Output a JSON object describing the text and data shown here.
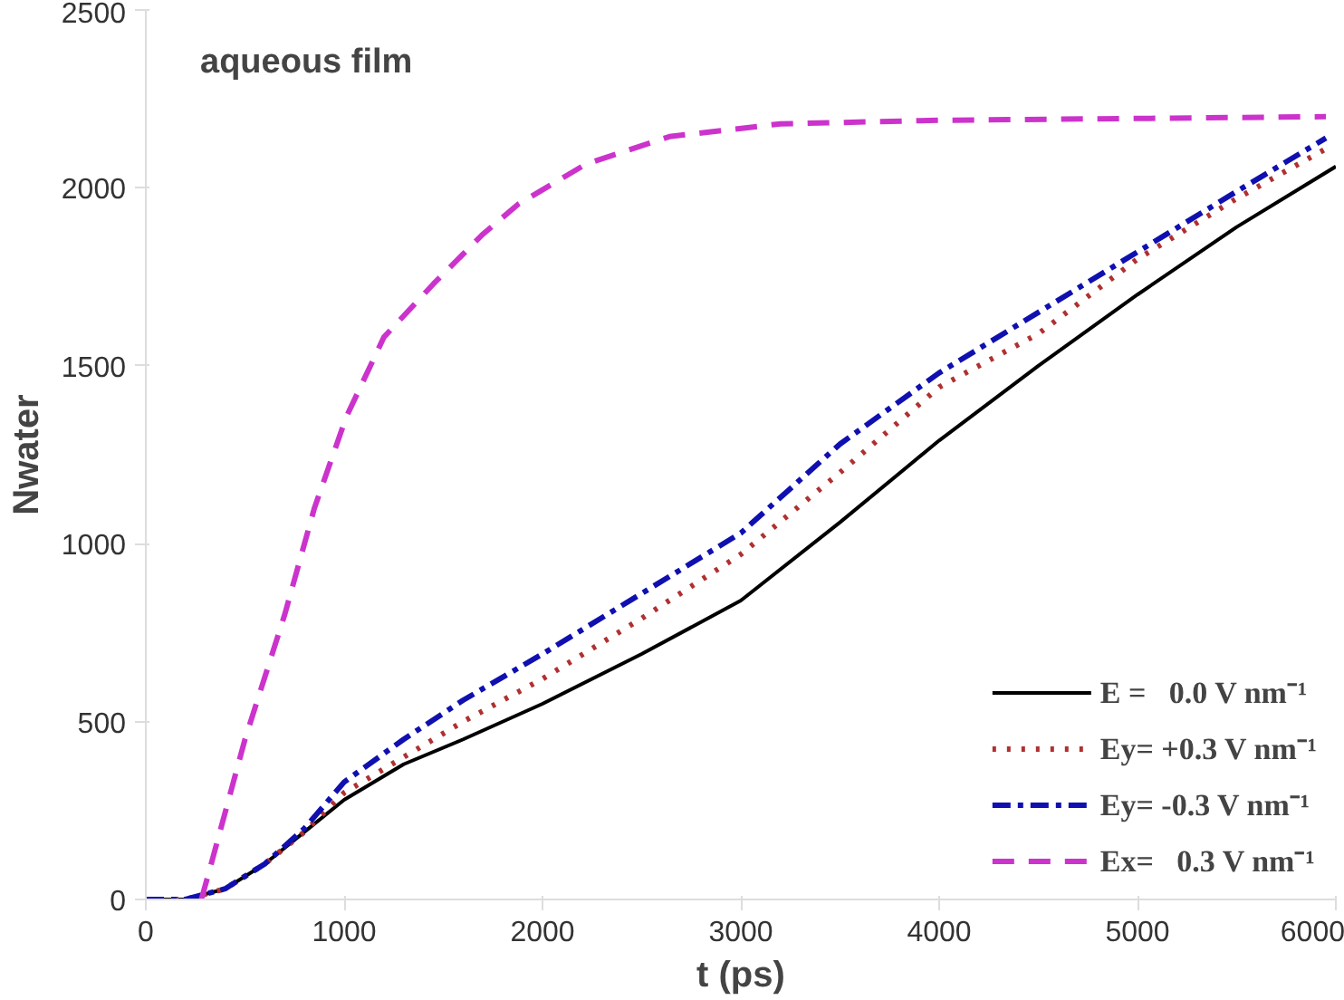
{
  "chart_data": {
    "type": "line",
    "xlabel": "t (ps)",
    "ylabel": "Nwater",
    "annotations": [
      "aqueous film"
    ],
    "xlim": [
      0,
      6000
    ],
    "ylim": [
      0,
      2500
    ],
    "xticks": [
      0,
      1000,
      2000,
      3000,
      4000,
      5000,
      6000
    ],
    "yticks": [
      0,
      500,
      1000,
      1500,
      2000,
      2500
    ],
    "grid": false,
    "legend": "bottom right",
    "series": [
      {
        "name": "E =   0.0 V nm⁻¹",
        "color": "#000000",
        "line_style": "solid",
        "x": [
          0,
          200,
          400,
          600,
          800,
          1000,
          1300,
          1600,
          2000,
          2500,
          3000,
          3500,
          4000,
          4500,
          5000,
          5500,
          6000
        ],
        "values": [
          0,
          0,
          30,
          100,
          190,
          280,
          380,
          450,
          550,
          690,
          840,
          1060,
          1290,
          1500,
          1700,
          1890,
          2060
        ]
      },
      {
        "name": "Ey= +0.3 V nm⁻¹",
        "color": "#b03030",
        "line_style": "dotted",
        "x": [
          0,
          200,
          400,
          600,
          800,
          1000,
          1300,
          1600,
          2000,
          2500,
          3000,
          3500,
          4000,
          4500,
          5000,
          5500,
          5950
        ],
        "values": [
          0,
          0,
          30,
          100,
          190,
          300,
          400,
          500,
          620,
          790,
          970,
          1200,
          1440,
          1590,
          1800,
          1970,
          2110
        ]
      },
      {
        "name": "Ey= -0.3 V nm⁻¹",
        "color": "#1010b0",
        "line_style": "dashdot",
        "x": [
          0,
          200,
          400,
          600,
          800,
          1000,
          1300,
          1600,
          2000,
          2500,
          3000,
          3500,
          4000,
          4500,
          5000,
          5500,
          5950
        ],
        "values": [
          0,
          0,
          30,
          100,
          200,
          330,
          450,
          560,
          690,
          860,
          1030,
          1280,
          1480,
          1650,
          1820,
          1990,
          2140
        ]
      },
      {
        "name": "Ex=   0.3 V nm⁻¹",
        "color": "#cc33cc",
        "line_style": "dashed",
        "x": [
          280,
          320,
          500,
          700,
          850,
          1010,
          1200,
          1450,
          1700,
          1880,
          2220,
          2640,
          3200,
          4000,
          5000,
          5950
        ],
        "values": [
          0,
          80,
          450,
          800,
          1100,
          1355,
          1580,
          1730,
          1870,
          1955,
          2067,
          2144,
          2180,
          2190,
          2195,
          2200
        ]
      }
    ]
  }
}
